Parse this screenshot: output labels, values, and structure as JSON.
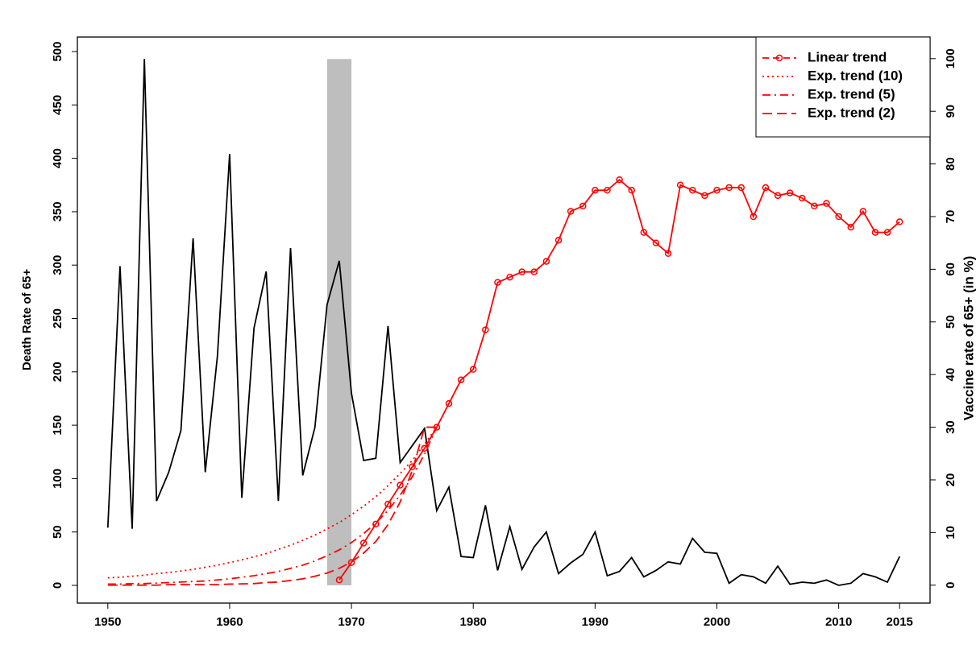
{
  "chart_data": {
    "type": "line",
    "y_label": "Death Rate of 65+",
    "y2_label": "Vaccine rate of 65+ (in %)",
    "xlim": [
      1947.5,
      2017.5
    ],
    "xticks": [
      1950,
      1960,
      1970,
      1980,
      1990,
      2000,
      2010,
      2015
    ],
    "ylim": [
      -16.6,
      513.6
    ],
    "yticks": [
      0,
      50,
      100,
      150,
      200,
      250,
      300,
      350,
      400,
      450,
      500
    ],
    "y2lim": [
      -3.4,
      104.1
    ],
    "y2ticks": [
      0,
      10,
      20,
      30,
      40,
      50,
      60,
      70,
      80,
      90,
      100
    ],
    "shaded_region": {
      "x": [
        1968,
        1970
      ],
      "y": [
        0,
        493
      ],
      "color": "#bebebe"
    },
    "legend": "top-right",
    "series": [
      {
        "color": "#000000",
        "dash": "solid",
        "marker": false,
        "x": [
          1950,
          1951,
          1952,
          1953,
          1954,
          1955,
          1956,
          1957,
          1958,
          1959,
          1960,
          1961,
          1962,
          1963,
          1964,
          1965,
          1966,
          1967,
          1968,
          1969,
          1970,
          1971,
          1972,
          1973,
          1974,
          1975,
          1976,
          1977,
          1978,
          1979,
          1980,
          1981,
          1982,
          1983,
          1984,
          1985,
          1986,
          1987,
          1988,
          1989,
          1990,
          1991,
          1992,
          1993,
          1994,
          1995,
          1996,
          1997,
          1998,
          1999,
          2000,
          2001,
          2002,
          2003,
          2004,
          2005,
          2006,
          2007,
          2008,
          2009,
          2010,
          2011,
          2012,
          2013,
          2014,
          2015
        ],
        "values": [
          54,
          299,
          53,
          493,
          79,
          106,
          145,
          325,
          106,
          215,
          404,
          82,
          241,
          294,
          79,
          316,
          103,
          148,
          263,
          304,
          180,
          117,
          119,
          243,
          115,
          131,
          147,
          70,
          92,
          27,
          26,
          75,
          14,
          55,
          15,
          36,
          50,
          11,
          21,
          29,
          50,
          9,
          13,
          26,
          8,
          14,
          22,
          20,
          44,
          31,
          30,
          2,
          10,
          8,
          2,
          18,
          1,
          3,
          2,
          5,
          0,
          2,
          11,
          8,
          3,
          27
        ]
      },
      {
        "name": "Linear trend",
        "color": "#ff0000",
        "axis": "y2",
        "dash": "solid",
        "marker": true,
        "x": [
          1969,
          1970,
          1971,
          1972,
          1973,
          1974,
          1975,
          1976,
          1977,
          1978,
          1979,
          1980,
          1981,
          1982,
          1983,
          1984,
          1985,
          1986,
          1987,
          1988,
          1989,
          1990,
          1991,
          1992,
          1993,
          1994,
          1995,
          1996,
          1997,
          1998,
          1999,
          2000,
          2001,
          2002,
          2003,
          2004,
          2005,
          2006,
          2007,
          2008,
          2009,
          2010,
          2011,
          2012,
          2013,
          2014,
          2015
        ],
        "values": [
          1,
          4.3,
          8,
          11.6,
          15.4,
          19,
          22.5,
          26,
          30,
          34.5,
          39,
          41,
          48.5,
          57.5,
          58.5,
          59.5,
          59.5,
          61.5,
          65.5,
          71,
          72,
          75,
          75,
          77,
          75,
          67,
          65,
          63,
          76,
          75,
          74,
          75,
          75.5,
          75.5,
          70,
          75.5,
          74,
          74.5,
          73.5,
          72,
          72.5,
          70,
          68,
          71,
          67,
          67,
          69
        ]
      },
      {
        "name": "Exp. trend (10)",
        "color": "#ff0000",
        "axis": "y2",
        "dash": "dotted",
        "marker": false,
        "x": [
          1950,
          1951,
          1952,
          1953,
          1954,
          1955,
          1956,
          1957,
          1958,
          1959,
          1960,
          1961,
          1962,
          1963,
          1964,
          1965,
          1966,
          1967,
          1968,
          1969,
          1970,
          1971,
          1972,
          1973,
          1974,
          1975,
          1976,
          1977
        ],
        "values": [
          1.4,
          1.5,
          1.7,
          1.9,
          2.2,
          2.4,
          2.7,
          3,
          3.4,
          3.8,
          4.3,
          4.8,
          5.4,
          6,
          6.8,
          7.6,
          8.5,
          9.5,
          10.7,
          11.9,
          13.4,
          15,
          16.8,
          18.9,
          21.2,
          23.7,
          26.8,
          30
        ]
      },
      {
        "name": "Exp. trend (5)",
        "color": "#ff0000",
        "axis": "y2",
        "dash": "dashdot",
        "marker": false,
        "x": [
          1950,
          1951,
          1952,
          1953,
          1954,
          1955,
          1956,
          1957,
          1958,
          1959,
          1960,
          1961,
          1962,
          1963,
          1964,
          1965,
          1966,
          1967,
          1968,
          1969,
          1970,
          1971,
          1972,
          1973,
          1974,
          1975,
          1976,
          1977
        ],
        "values": [
          0.2,
          0.2,
          0.3,
          0.3,
          0.4,
          0.5,
          0.6,
          0.7,
          0.8,
          1,
          1.2,
          1.5,
          1.8,
          2.2,
          2.6,
          3.2,
          3.8,
          4.6,
          5.6,
          6.7,
          8.1,
          9.8,
          11.8,
          14.2,
          17.1,
          20.6,
          24.9,
          30
        ]
      },
      {
        "name": "Exp. trend (2)",
        "color": "#ff0000",
        "axis": "y2",
        "dash": "dashed",
        "marker": false,
        "x": [
          1950,
          1951,
          1952,
          1953,
          1954,
          1955,
          1956,
          1957,
          1958,
          1959,
          1960,
          1961,
          1962,
          1963,
          1964,
          1965,
          1966,
          1967,
          1968,
          1969,
          1970,
          1971,
          1972,
          1973,
          1974,
          1975,
          1976,
          1977
        ],
        "values": [
          0,
          0,
          0,
          0,
          0,
          0.1,
          0.1,
          0.1,
          0.1,
          0.1,
          0.2,
          0.25,
          0.3,
          0.5,
          0.6,
          0.9,
          1.2,
          1.7,
          2.3,
          3.2,
          4.4,
          6.1,
          8.3,
          11.5,
          15.8,
          21.8,
          30,
          30
        ]
      }
    ]
  }
}
